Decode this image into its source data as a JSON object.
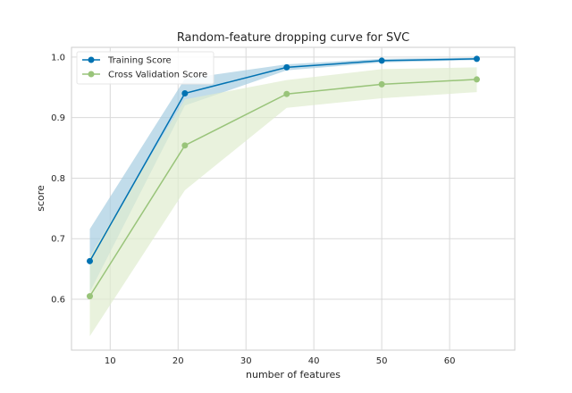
{
  "chart_data": {
    "type": "line",
    "title": "Random-feature dropping curve for SVC",
    "xlabel": "number of features",
    "ylabel": "score",
    "xlim": [
      4.3,
      69.6
    ],
    "ylim": [
      0.516,
      1.016
    ],
    "x_ticks": [
      10,
      20,
      30,
      40,
      50,
      60
    ],
    "y_ticks": [
      0.6,
      0.7,
      0.8,
      0.9,
      1.0
    ],
    "x_tick_labels": [
      "10",
      "20",
      "30",
      "40",
      "50",
      "60"
    ],
    "y_tick_labels": [
      "0.6",
      "0.7",
      "0.8",
      "0.9",
      "1.0"
    ],
    "grid": true,
    "legend_position": "top-left",
    "x": [
      7,
      21,
      36,
      50,
      64
    ],
    "series": [
      {
        "name": "Training Score",
        "color": "#0072b2",
        "band_color": "#a6cde1",
        "values": [
          0.663,
          0.94,
          0.983,
          0.994,
          0.997
        ],
        "lower": [
          0.612,
          0.92,
          0.978,
          0.991,
          0.995
        ],
        "upper": [
          0.716,
          0.964,
          0.988,
          0.997,
          0.999
        ]
      },
      {
        "name": "Cross Validation Score",
        "color": "#99c47a",
        "band_color": "#dfeccf",
        "values": [
          0.605,
          0.854,
          0.939,
          0.955,
          0.963
        ],
        "lower": [
          0.539,
          0.78,
          0.916,
          0.932,
          0.942
        ],
        "upper": [
          0.671,
          0.93,
          0.962,
          0.98,
          0.983
        ]
      }
    ]
  }
}
